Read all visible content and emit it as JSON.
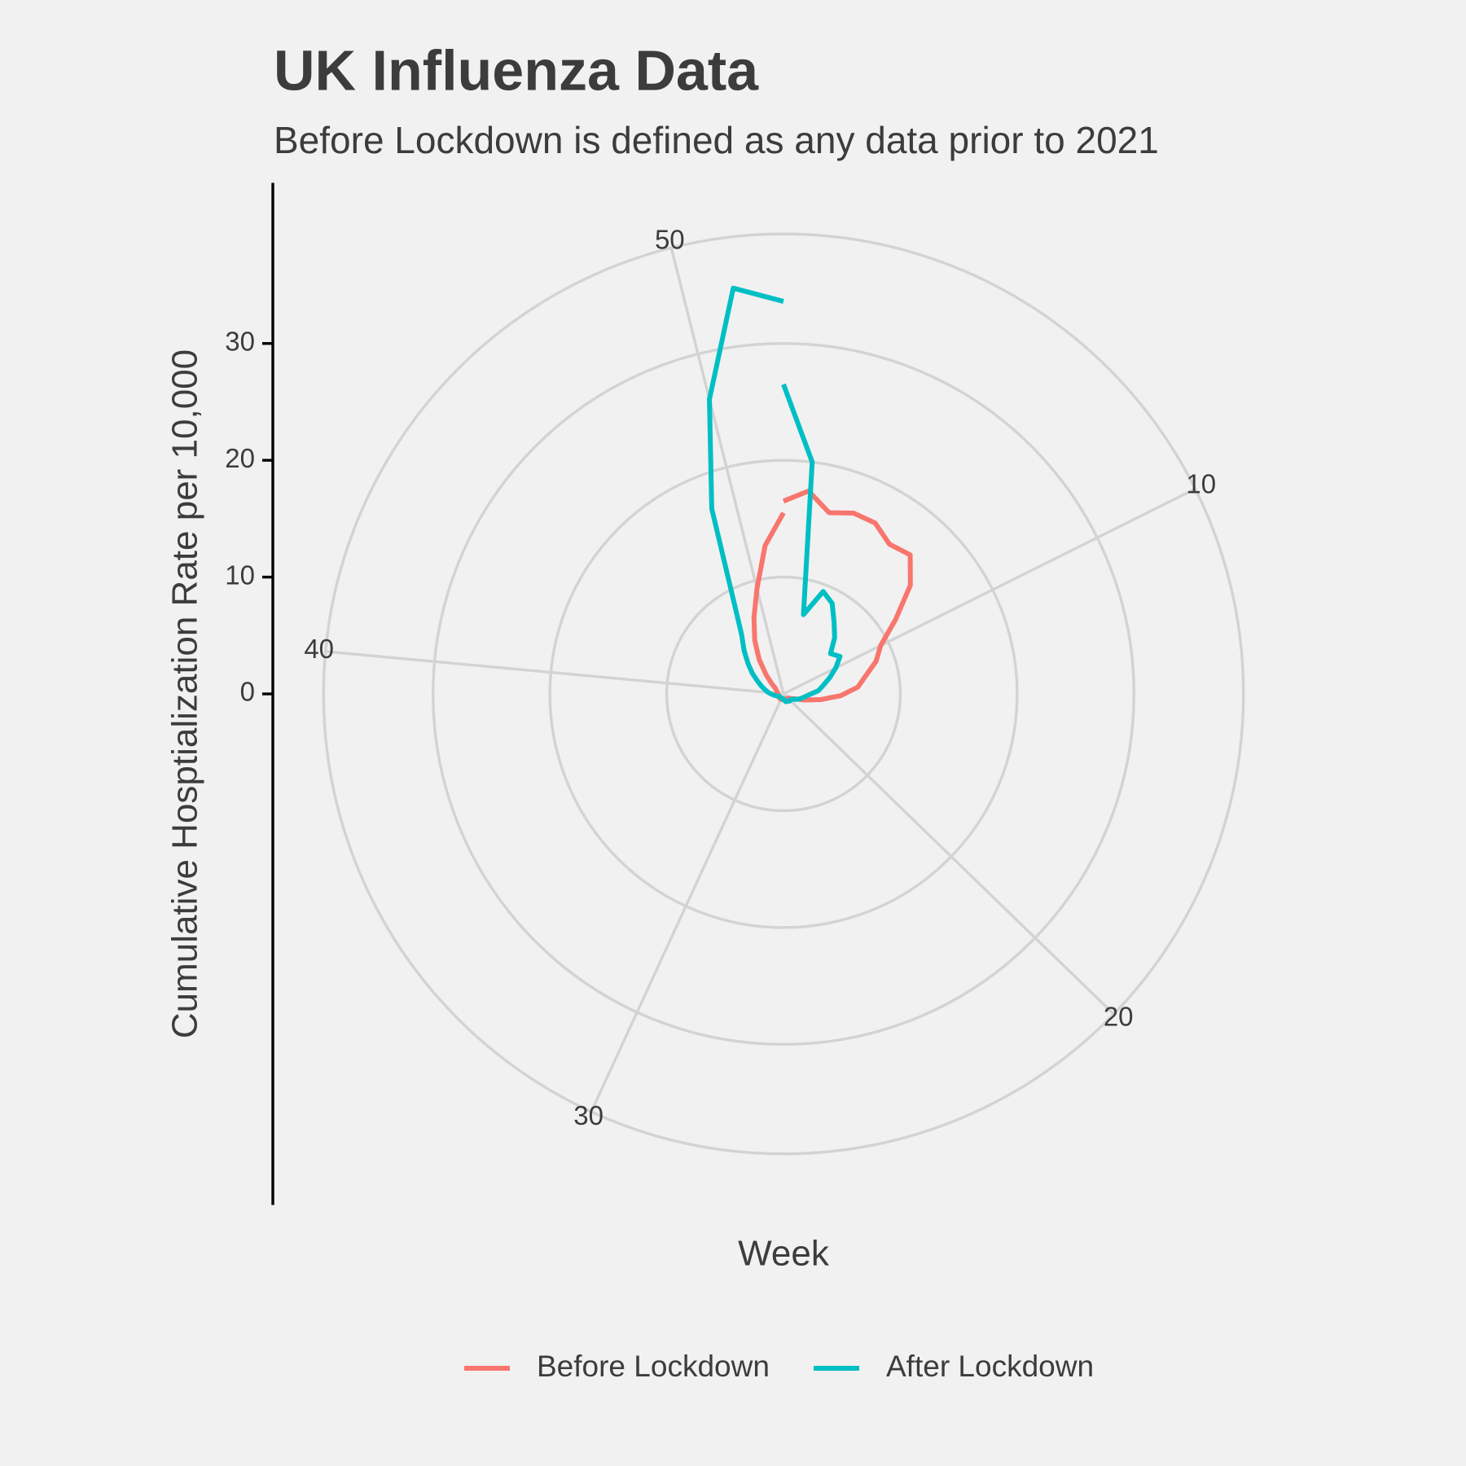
{
  "chart_data": {
    "type": "polar-line",
    "title": "UK Influenza Data",
    "subtitle": "Before Lockdown is defined as any data prior to 2021",
    "x_label": "Week",
    "y_label": "Cumulative Hosptialization Rate per 10,000",
    "x": [
      1,
      2,
      3,
      4,
      5,
      6,
      7,
      8,
      9,
      10,
      11,
      12,
      13,
      14,
      15,
      16,
      17,
      18,
      19,
      20,
      21,
      22,
      23,
      24,
      25,
      26,
      27,
      28,
      29,
      30,
      31,
      32,
      33,
      34,
      35,
      36,
      37,
      38,
      39,
      40,
      41,
      42,
      43,
      44,
      45,
      46,
      47,
      48,
      49,
      50,
      51,
      52
    ],
    "xlim": [
      1,
      52
    ],
    "xticks": [
      10,
      20,
      30,
      40,
      50
    ],
    "ylim": [
      0,
      35
    ],
    "yticks": [
      0,
      10,
      20,
      30
    ],
    "grid": true,
    "legend_position": "bottom",
    "series": [
      {
        "name": "Before Lockdown",
        "color": "#F8766D",
        "values": [
          16.5,
          17.5,
          16,
          16.6,
          16.6,
          15.7,
          16.1,
          14.3,
          11.5,
          9.3,
          8.4,
          7.2,
          6.4,
          4.9,
          3.2,
          1.9,
          1.1,
          0.8,
          0.6,
          0.5,
          0.5,
          0.5,
          0.5,
          0.5,
          0.5,
          0.5,
          0.5,
          0.5,
          0.5,
          0.5,
          0.5,
          0.5,
          0.5,
          0.5,
          0.5,
          0.5,
          0.5,
          0.5,
          0.5,
          0.5,
          0.5,
          0.6,
          0.7,
          0.8,
          1.3,
          2.2,
          3.6,
          5.2,
          7,
          9.3,
          12.8,
          15.5
        ]
      },
      {
        "name": "After Lockdown",
        "color": "#00BFC4",
        "values": [
          26.5,
          20,
          7,
          9.4,
          8.8,
          7.5,
          6.5,
          5.3,
          5.8,
          5,
          4.2,
          3.5,
          3,
          2.2,
          1.8,
          1.5,
          1.2,
          0.9,
          0.8,
          0.8,
          0.8,
          0.7,
          0.7,
          0.7,
          0.6,
          0.5,
          0.4,
          0.4,
          0.4,
          0.4,
          0.4,
          0.4,
          0.4,
          0.4,
          0.4,
          0.5,
          0.6,
          0.8,
          1,
          1.3,
          1.6,
          2,
          2.5,
          3.2,
          4,
          5,
          6.2,
          9,
          17,
          26,
          35,
          33.6
        ]
      }
    ]
  }
}
